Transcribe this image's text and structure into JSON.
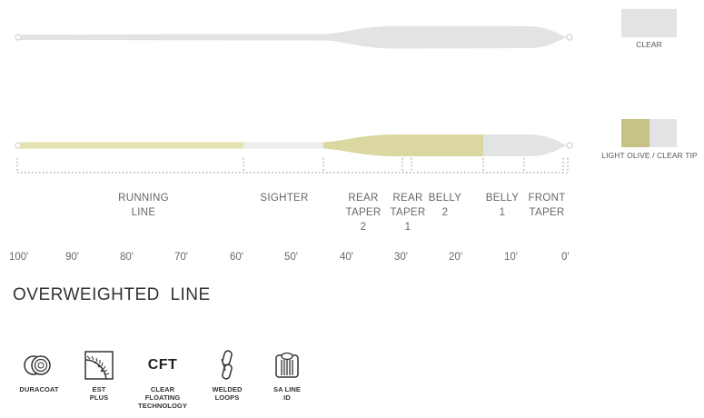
{
  "lines": [
    {
      "name": "clear-line",
      "color_label": "CLEAR",
      "colors": {
        "main": "#e2e3e4",
        "tip": "#e2e3e4"
      }
    },
    {
      "name": "olive-line",
      "color_label": "LIGHT OLIVE / CLEAR TIP",
      "colors": {
        "running": "#e4e2b0",
        "sighter": "#eeeeee",
        "taper": "#dad8a0",
        "tip": "#e2e3e4"
      }
    }
  ],
  "segments": [
    {
      "label_lines": [
        "RUNNING",
        "LINE"
      ]
    },
    {
      "label_lines": [
        "SIGHTER"
      ]
    },
    {
      "label_lines": [
        "REAR",
        "TAPER",
        "2"
      ]
    },
    {
      "label_lines": [
        "REAR",
        "TAPER",
        "1"
      ]
    },
    {
      "label_lines": [
        "BELLY",
        "2"
      ]
    },
    {
      "label_lines": [
        "BELLY",
        "1"
      ]
    },
    {
      "label_lines": [
        "FRONT",
        "TAPER"
      ]
    }
  ],
  "scale_ticks": [
    "100'",
    "90'",
    "80'",
    "70'",
    "60'",
    "50'",
    "40'",
    "30'",
    "20'",
    "10'",
    "0'"
  ],
  "title": "OVERWEIGHTED  LINE",
  "features": [
    {
      "icon": "duracoat-icon",
      "label_lines": [
        "DURACOAT"
      ]
    },
    {
      "icon": "est-plus-icon",
      "label_lines": [
        "EST",
        "PLUS"
      ]
    },
    {
      "icon": "cft-icon",
      "icon_text": "CFT",
      "label_lines": [
        "CLEAR",
        "FLOATING",
        "TECHNOLOGY"
      ]
    },
    {
      "icon": "welded-loops-icon",
      "label_lines": [
        "WELDED",
        "LOOPS"
      ]
    },
    {
      "icon": "sa-line-id-icon",
      "label_lines": [
        "SA LINE",
        "ID"
      ]
    }
  ]
}
